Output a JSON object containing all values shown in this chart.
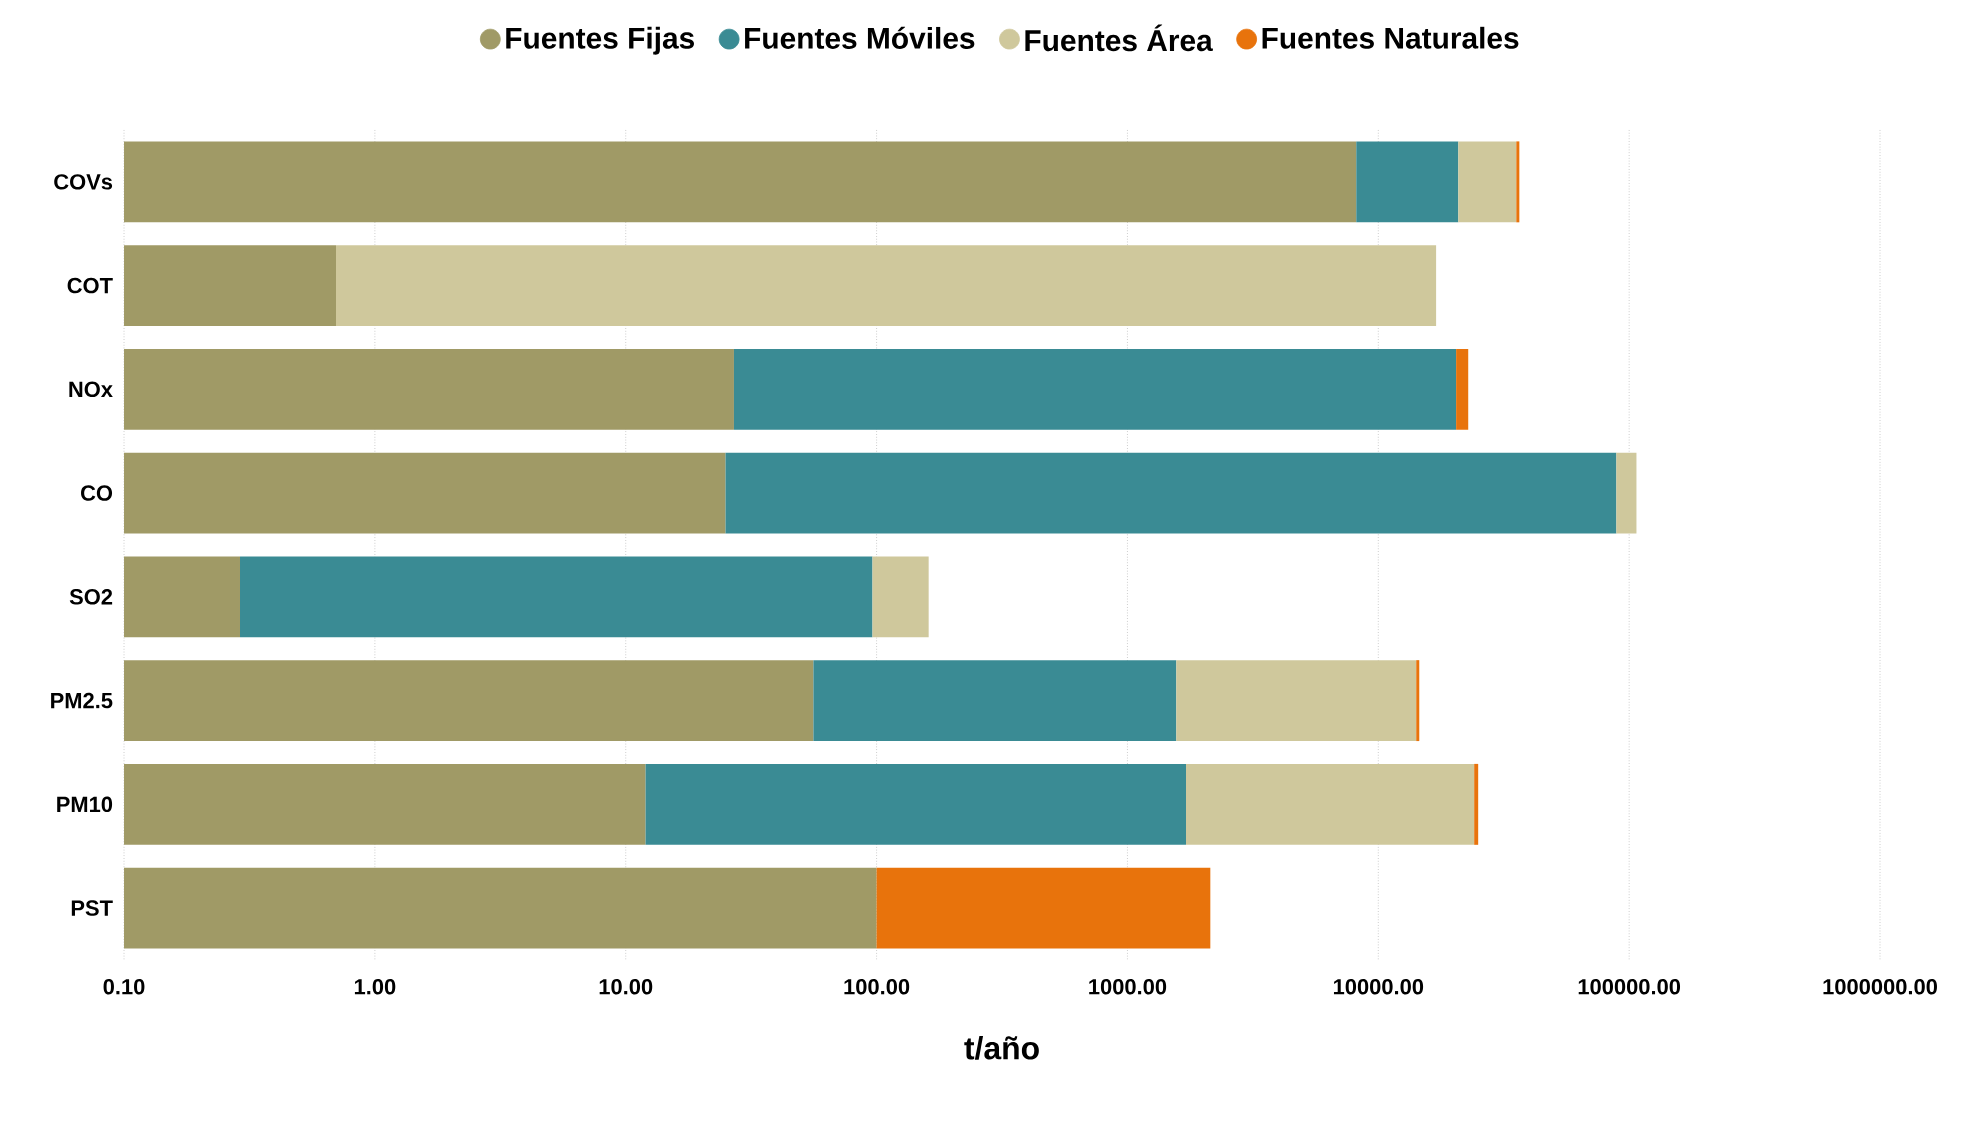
{
  "chart_data": {
    "type": "bar",
    "orientation": "horizontal",
    "stacked": true,
    "log": "x",
    "grid": "x",
    "legend": "top",
    "marker": "circle",
    "xlabel": "t/año",
    "categories": [
      "COVs",
      "COT",
      "NOx",
      "CO",
      "SO2",
      "PM2.5",
      "PM10",
      "PST"
    ],
    "series": [
      {
        "name": "Fuentes Fijas",
        "color": "#a09a66",
        "values": [
          8170,
          0.7,
          27,
          25,
          0.29,
          56,
          12,
          100
        ]
      },
      {
        "name": "Fuentes Móviles",
        "color": "#3a8b94",
        "values": [
          12670,
          null,
          20400,
          88900,
          96,
          1510,
          1700,
          null
        ]
      },
      {
        "name": "Fuentes Área",
        "color": "#cfc89c",
        "values": [
          14660,
          16999,
          null,
          18000,
          65,
          12600,
          22400,
          null
        ]
      },
      {
        "name": "Fuentes Naturales",
        "color": "#e8730c",
        "values": [
          1000,
          null,
          2400,
          null,
          null,
          400,
          900,
          2040
        ]
      }
    ],
    "xlim": [
      0.1,
      1000000
    ],
    "xticks": [
      {
        "value": 0.1,
        "label": "0.10"
      },
      {
        "value": 1,
        "label": "1.00"
      },
      {
        "value": 10,
        "label": "10.00"
      },
      {
        "value": 100,
        "label": "100.00"
      },
      {
        "value": 1000,
        "label": "1000.00"
      },
      {
        "value": 10000,
        "label": "10000.00"
      },
      {
        "value": 100000,
        "label": "100000.00"
      },
      {
        "value": 1000000,
        "label": "1000000.00"
      }
    ]
  }
}
